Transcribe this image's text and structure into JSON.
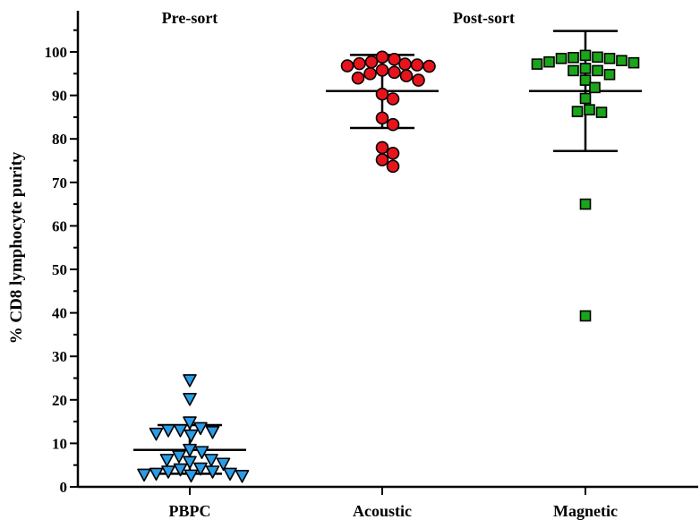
{
  "chart_data": {
    "type": "scatter",
    "ylabel": "% CD8 lymphocyte purity",
    "xlabel": "",
    "ylim": [
      0,
      105
    ],
    "yticks": [
      0,
      10,
      20,
      30,
      40,
      50,
      60,
      70,
      80,
      90,
      100
    ],
    "categories": [
      "PBPC",
      "Acoustic",
      "Magnetic"
    ],
    "group_labels": [
      {
        "text": "Pre-sort",
        "over": [
          "PBPC"
        ]
      },
      {
        "text": "Post-sort",
        "over": [
          "Acoustic",
          "Magnetic"
        ]
      }
    ],
    "series": [
      {
        "category": "PBPC",
        "marker": "triangle-down",
        "color": "#2b9ce6",
        "mean": 8.5,
        "sd_low": 3.0,
        "sd_high": 14.2,
        "values": [
          24.5,
          20.2,
          14.8,
          13.5,
          13.0,
          13.0,
          12.6,
          12.2,
          11.8,
          8.5,
          8.0,
          7.0,
          6.2,
          6.2,
          5.7,
          5.3,
          4.2,
          4.0,
          3.5,
          3.5,
          3.0,
          3.0,
          2.8,
          2.6,
          2.5
        ]
      },
      {
        "category": "Acoustic",
        "marker": "circle",
        "color": "#e8141b",
        "mean": 91.0,
        "sd_low": 82.5,
        "sd_high": 99.3,
        "values": [
          98.8,
          98.3,
          97.7,
          97.3,
          97.2,
          97.0,
          96.8,
          96.7,
          95.8,
          95.3,
          95.0,
          94.5,
          94.0,
          93.5,
          90.3,
          89.2,
          84.8,
          83.3,
          78.0,
          76.7,
          75.2,
          73.7
        ]
      },
      {
        "category": "Magnetic",
        "marker": "square",
        "color": "#1aa51a",
        "mean": 91.0,
        "sd_low": 77.2,
        "sd_high": 104.8,
        "values": [
          99.2,
          98.8,
          98.7,
          98.5,
          98.5,
          98.0,
          97.7,
          97.5,
          97.2,
          96.2,
          95.7,
          95.7,
          94.8,
          93.5,
          91.8,
          89.3,
          86.7,
          86.3,
          86.1,
          65.0,
          39.3
        ]
      }
    ]
  }
}
